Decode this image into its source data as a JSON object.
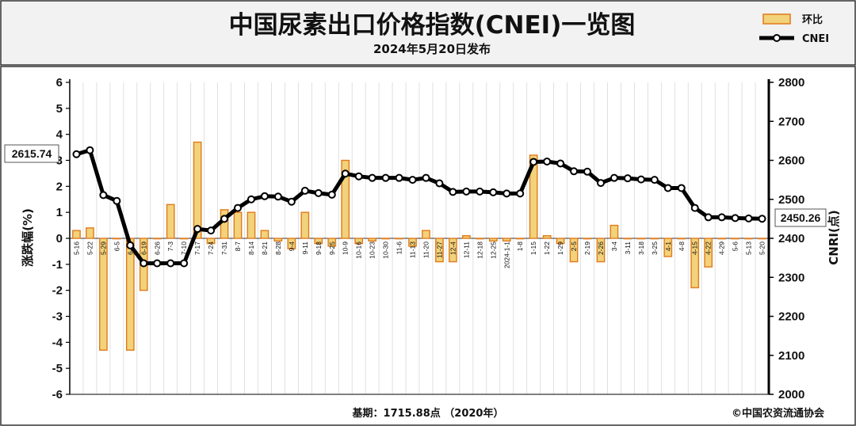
{
  "header": {
    "title": "中国尿素出口价格指数(CNEI)一览图",
    "subtitle": "2024年5月20日发布"
  },
  "legend": {
    "bar_label": "环比",
    "line_label": "CNEI"
  },
  "footer": {
    "base_note": "基期：1715.88点 （2020年）",
    "copyright": "©中国农资流通协会"
  },
  "colors": {
    "bar_fill": "#f2d27a",
    "bar_stroke": "#e07b1a",
    "line": "#000000",
    "marker_fill": "#ffffff",
    "header_bg": "#f2f2f2",
    "plot_bg": "#ffffff",
    "grid": "#d9d9d9"
  },
  "chart_data": {
    "type": "bar+line",
    "xlabels": [
      "5-16",
      "5-22",
      "5-29",
      "6-5",
      "6-12",
      "6-19",
      "6-26",
      "7-3",
      "7-10",
      "7-17",
      "7-24",
      "7-31",
      "8-7",
      "8-14",
      "8-21",
      "8-28",
      "9-4",
      "9-11",
      "9-18",
      "9-25",
      "10-9",
      "10-16",
      "10-23",
      "10-30",
      "11-6",
      "11-13",
      "11-20",
      "11-27",
      "12-4",
      "12-11",
      "12-18",
      "12-25",
      "2024-1-1",
      "1-8",
      "1-15",
      "1-22",
      "1-29",
      "2-5",
      "2-19",
      "2-26",
      "3-4",
      "3-11",
      "3-18",
      "3-25",
      "4-1",
      "4-8",
      "4-15",
      "4-22",
      "4-29",
      "5-6",
      "5-13",
      "5-20"
    ],
    "xlabels_shown": [
      "5-16",
      "5-22",
      "5-29",
      "6-5",
      "6-12",
      "6-19",
      "6-26",
      "7-3",
      "7-10",
      "7-17",
      "7-24",
      "7-31",
      "8-7",
      "8-14",
      "8-21",
      "8-28",
      "9-4",
      "9-11",
      "9-18",
      "9-25",
      "10-9",
      "10-16",
      "10-23",
      "10-30",
      "11-6",
      "11-13",
      "11-20",
      "11-27",
      "12-4",
      "12-11",
      "12-18",
      "12-25",
      "2024-1-1",
      "1-8",
      "1-15",
      "1-22",
      "1-29",
      "2-5",
      "2-19",
      "2-26",
      "3-4",
      "3-11",
      "3-18",
      "3-25",
      "4-1",
      "4-8",
      "4-15",
      "4-22",
      "4-29",
      "5-6",
      "5-13",
      "5-20"
    ],
    "series": [
      {
        "name": "环比",
        "type": "bar",
        "axis": "left",
        "values": [
          0.3,
          0.4,
          -4.3,
          0,
          -4.3,
          -2.0,
          0,
          1.3,
          0,
          3.7,
          -0.2,
          1.1,
          1.0,
          1.0,
          0.3,
          -0.1,
          -0.4,
          1.0,
          -0.2,
          -0.3,
          3.0,
          -0.2,
          -0.1,
          0,
          0,
          -0.3,
          0.3,
          -0.9,
          -0.9,
          0.1,
          0,
          -0.1,
          -0.1,
          0,
          3.2,
          0.1,
          -0.2,
          -0.9,
          0,
          -0.9,
          0.5,
          0,
          0,
          0,
          -0.7,
          0,
          -1.9,
          -1.1,
          0,
          0,
          0,
          0
        ]
      },
      {
        "name": "CNEI",
        "type": "line",
        "axis": "right",
        "values": [
          2615.74,
          2626,
          2511,
          2496,
          2382,
          2336,
          2336,
          2336,
          2336,
          2424,
          2420,
          2450,
          2478,
          2500,
          2508,
          2507,
          2494,
          2522,
          2516,
          2512,
          2566,
          2559,
          2555,
          2555,
          2555,
          2550,
          2555,
          2541,
          2519,
          2520,
          2520,
          2518,
          2515,
          2515,
          2596,
          2597,
          2592,
          2572,
          2571,
          2542,
          2555,
          2554,
          2551,
          2550,
          2529,
          2529,
          2478,
          2454,
          2454,
          2452,
          2451,
          2450.26
        ]
      }
    ],
    "y_left": {
      "label": "涨跌幅(%)",
      "min": -6,
      "max": 6,
      "ticks": [
        -6,
        -5,
        -4,
        -3,
        -2,
        -1,
        0,
        1,
        2,
        3,
        4,
        5,
        6
      ]
    },
    "y_right": {
      "label": "CNRI(点)",
      "min": 2000,
      "max": 2800,
      "ticks": [
        2000,
        2100,
        2200,
        2300,
        2400,
        2500,
        2600,
        2700,
        2800
      ]
    },
    "callouts": {
      "first": "2615.74",
      "last": "2450.26"
    },
    "grid": true,
    "legend_position": "top-right"
  }
}
